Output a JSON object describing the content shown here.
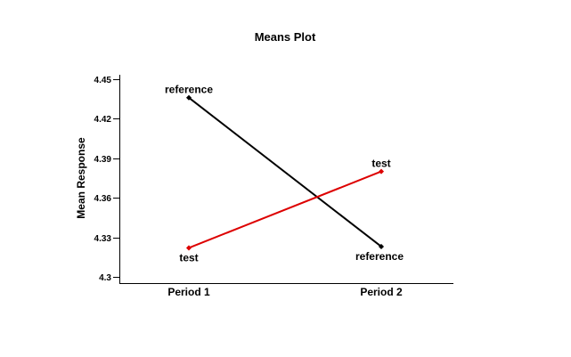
{
  "chart_data": {
    "type": "line",
    "title": "Means Plot",
    "xlabel": "",
    "ylabel": "Mean Response",
    "categories": [
      "Period 1",
      "Period 2"
    ],
    "ylim": [
      4.3,
      4.45
    ],
    "yticks": [
      "4.3",
      "4.33",
      "4.36",
      "4.39",
      "4.42",
      "4.45"
    ],
    "grid": false,
    "series": [
      {
        "name": "reference",
        "color": "#000000",
        "values": [
          4.436,
          4.323
        ],
        "point_labels": [
          "reference",
          "reference"
        ]
      },
      {
        "name": "test",
        "color": "#dd0000",
        "values": [
          4.322,
          4.38
        ],
        "point_labels": [
          "test",
          "test"
        ]
      }
    ]
  }
}
